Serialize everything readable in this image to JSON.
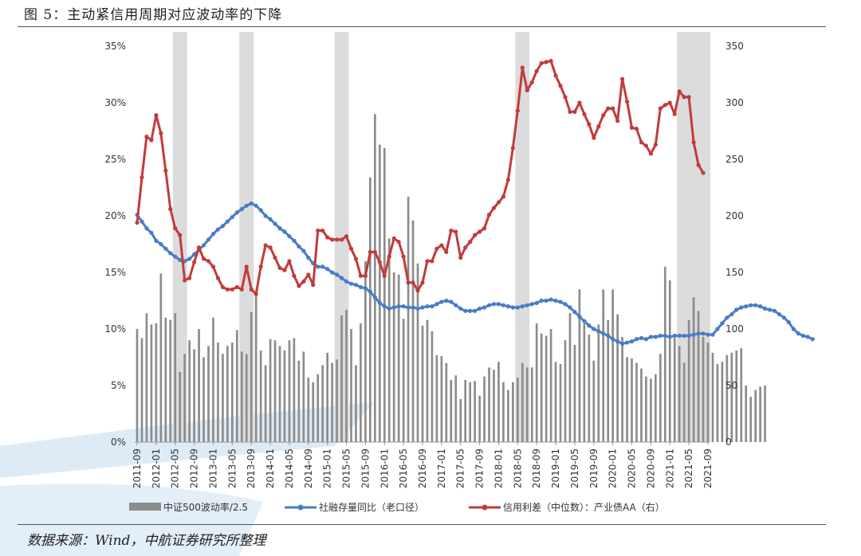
{
  "figure": {
    "title": "图 5：主动紧信用周期对应波动率的下降",
    "source": "数据来源：Wind，中航证券研究所整理"
  },
  "colors": {
    "bars": "#8c8c8c",
    "shade": "#dcdcdc",
    "social_financing": "#4a7cc7",
    "credit_spread": "#c23b3b",
    "watermark": "#cfe3f3"
  },
  "chart_data": {
    "type": "bar+line",
    "dual_axis": true,
    "yleft": {
      "lim": [
        0,
        35
      ],
      "ticks": [
        "0%",
        "5%",
        "10%",
        "15%",
        "20%",
        "25%",
        "30%",
        "35%"
      ]
    },
    "yright": {
      "lim": [
        0,
        350
      ],
      "ticks": [
        "0",
        "50",
        "100",
        "150",
        "200",
        "250",
        "300",
        "350"
      ]
    },
    "x_tick_labels": [
      "2011-09",
      "2012-01",
      "2012-05",
      "2012-09",
      "2013-01",
      "2013-05",
      "2013-09",
      "2014-01",
      "2014-05",
      "2014-09",
      "2015-01",
      "2015-05",
      "2015-09",
      "2016-01",
      "2016-05",
      "2016-09",
      "2017-01",
      "2017-05",
      "2017-09",
      "2018-01",
      "2018-05",
      "2018-09",
      "2019-01",
      "2019-05",
      "2019-09",
      "2020-01",
      "2020-05",
      "2020-09",
      "2021-01",
      "2021-05",
      "2021-09"
    ],
    "grid": false,
    "legend_position": "bottom",
    "shaded_periods": [
      [
        "2012-05",
        "2012-07"
      ],
      [
        "2013-07",
        "2013-09"
      ],
      [
        "2015-03",
        "2015-05"
      ],
      [
        "2018-05",
        "2018-07"
      ],
      [
        "2021-03",
        "2021-09"
      ]
    ],
    "series": [
      {
        "name": "中证500波动率/2.5",
        "type": "bar",
        "axis": "left",
        "start": "2011-09",
        "values": [
          10,
          9.2,
          11.4,
          10.4,
          10.5,
          14.9,
          11,
          10.8,
          11.4,
          6.2,
          7.8,
          9,
          8.2,
          10,
          7.5,
          8.5,
          11,
          8.8,
          7.8,
          8.5,
          8.8,
          9.9,
          8,
          7.8,
          11.5,
          13.2,
          8.1,
          6.8,
          9.1,
          9,
          8.5,
          8.1,
          9,
          9.2,
          7.2,
          8,
          5.7,
          5.3,
          6,
          6.8,
          7.9,
          7,
          7.3,
          11.2,
          11.7,
          10,
          6.8,
          10.5,
          16,
          23.4,
          29,
          26.3,
          26,
          18,
          15,
          14.8,
          10.9,
          21.7,
          19.6,
          15.8,
          10.3,
          10.8,
          9.8,
          7.7,
          7.6,
          7,
          5.5,
          5.9,
          3.8,
          5.5,
          5.3,
          5.4,
          4.1,
          5.8,
          6.6,
          6.4,
          7.1,
          5.3,
          4.6,
          5.3,
          5.7,
          7,
          6.6,
          6.6,
          10.5,
          9.6,
          9.4,
          10,
          7.1,
          6.9,
          9,
          11.4,
          8.6,
          13.5,
          10.5,
          9.5,
          7.2,
          10.4,
          13.5,
          10.8,
          13.5,
          11.3,
          9.3,
          7.5,
          7.4,
          7,
          6.5,
          5.8,
          5.6,
          6,
          7.8,
          15.5,
          14.3,
          9.5,
          8.5,
          7,
          10.8,
          12.8,
          11.6,
          9.3,
          8.8,
          7.9,
          6.9,
          7.1,
          7.7,
          7.9,
          8.1,
          8.3,
          5,
          4,
          4.6,
          4.9,
          5
        ]
      },
      {
        "name": "社融存量同比（老口径）",
        "type": "line",
        "axis": "left",
        "start": "2011-09",
        "values": [
          20.1,
          19.5,
          18.9,
          18.5,
          17.8,
          17.5,
          17.1,
          16.7,
          16.4,
          16.1,
          16,
          16.2,
          16.6,
          17,
          17.4,
          17.9,
          18.4,
          18.8,
          19.1,
          19.5,
          19.9,
          20.3,
          20.6,
          20.9,
          21.1,
          20.9,
          20.5,
          20,
          19.7,
          19.3,
          18.9,
          18.6,
          18.2,
          17.8,
          17.3,
          16.9,
          16.3,
          15.8,
          15.5,
          15.5,
          15.3,
          15,
          14.8,
          14.5,
          14.2,
          14,
          13.9,
          13.7,
          13.6,
          13.3,
          12.8,
          12.3,
          12,
          11.8,
          11.9,
          12,
          12,
          11.9,
          11.9,
          11.8,
          11.9,
          12,
          12,
          12.2,
          12.4,
          12.5,
          12.4,
          12.1,
          11.8,
          11.6,
          11.6,
          11.6,
          11.8,
          11.9,
          12.1,
          12.2,
          12.2,
          12.1,
          12,
          11.9,
          11.9,
          12,
          12.1,
          12.2,
          12.3,
          12.5,
          12.5,
          12.6,
          12.5,
          12.4,
          12.2,
          11.9,
          11.5,
          11.1,
          10.7,
          10.3,
          10,
          9.8,
          9.6,
          9.4,
          9.1,
          8.9,
          8.7,
          8.8,
          8.9,
          9.1,
          9.2,
          9.1,
          9.3,
          9.3,
          9.4,
          9.4,
          9.3,
          9.4,
          9.4,
          9.4,
          9.4,
          9.5,
          9.6,
          9.6,
          9.5,
          9.5,
          10,
          10.5,
          11,
          11.3,
          11.7,
          11.9,
          12,
          12.1,
          12.1,
          12,
          11.8,
          11.7,
          11.6,
          11.3,
          11,
          10.6,
          10,
          9.6,
          9.4,
          9.3,
          9.1
        ]
      },
      {
        "name": "信用利差（中位数）：产业债AA（右）",
        "type": "line",
        "axis": "right",
        "start": "2011-09",
        "values": [
          194,
          234,
          270,
          267,
          289,
          273,
          240,
          206,
          189,
          183,
          143,
          145,
          159,
          172,
          162,
          160,
          155,
          145,
          137,
          135,
          135,
          137,
          135,
          155,
          135,
          131,
          155,
          174,
          172,
          163,
          154,
          152,
          160,
          147,
          138,
          142,
          148,
          139,
          187,
          187,
          181,
          179,
          179,
          179,
          182,
          171,
          162,
          147,
          147,
          168,
          168,
          159,
          147,
          164,
          180,
          177,
          164,
          141,
          141,
          134,
          141,
          160,
          160,
          171,
          174,
          168,
          187,
          186,
          163,
          172,
          177,
          183,
          186,
          189,
          201,
          207,
          212,
          217,
          232,
          260,
          293,
          331,
          311,
          318,
          328,
          335,
          336,
          337,
          324,
          315,
          305,
          292,
          292,
          300,
          290,
          281,
          269,
          279,
          289,
          295,
          295,
          284,
          321,
          301,
          278,
          277,
          265,
          262,
          255,
          263,
          295,
          298,
          300,
          290,
          310,
          305,
          305,
          265,
          245,
          238
        ]
      }
    ]
  }
}
